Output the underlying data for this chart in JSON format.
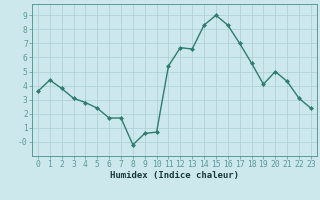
{
  "x": [
    0,
    1,
    2,
    3,
    4,
    5,
    6,
    7,
    8,
    9,
    10,
    11,
    12,
    13,
    14,
    15,
    16,
    17,
    18,
    19,
    20,
    21,
    22,
    23
  ],
  "y": [
    3.6,
    4.4,
    3.8,
    3.1,
    2.8,
    2.4,
    1.7,
    1.7,
    -0.2,
    0.6,
    0.7,
    5.4,
    6.7,
    6.6,
    8.3,
    9.0,
    8.3,
    7.0,
    5.6,
    4.1,
    5.0,
    4.3,
    3.1,
    2.4
  ],
  "line_color": "#2e7d6e",
  "marker": "D",
  "marker_size": 2.0,
  "bg_color": "#cce8ec",
  "grid_color": "#aacdd4",
  "xlabel": "Humidex (Indice chaleur)",
  "xlim": [
    -0.5,
    23.5
  ],
  "ylim": [
    -1.0,
    9.8
  ],
  "yticks": [
    0,
    1,
    2,
    3,
    4,
    5,
    6,
    7,
    8,
    9
  ],
  "ytick_labels": [
    "-0",
    "1",
    "2",
    "3",
    "4",
    "5",
    "6",
    "7",
    "8",
    "9"
  ],
  "xticks": [
    0,
    1,
    2,
    3,
    4,
    5,
    6,
    7,
    8,
    9,
    10,
    11,
    12,
    13,
    14,
    15,
    16,
    17,
    18,
    19,
    20,
    21,
    22,
    23
  ],
  "xlabel_fontsize": 6.5,
  "tick_fontsize": 5.8,
  "line_width": 1.0,
  "spine_color": "#5a9a9a"
}
